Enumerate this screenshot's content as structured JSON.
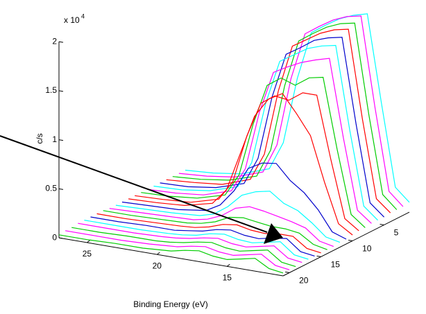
{
  "chart_data": {
    "type": "waterfall3d",
    "x_label": "Binding Energy (eV)",
    "z_label": "c/s",
    "z_multiplier": "x 10",
    "z_exponent": "4",
    "x": [
      27,
      25,
      23,
      21,
      20,
      19,
      18,
      17,
      16,
      15,
      14,
      13,
      12,
      11
    ],
    "xlim": [
      27,
      11
    ],
    "xticks": [
      25,
      20,
      15
    ],
    "ylim": [
      1,
      21
    ],
    "yticks": [
      5,
      10,
      15,
      20
    ],
    "zlim": [
      0,
      2
    ],
    "zticks": [
      0,
      0.5,
      1,
      1.5,
      2
    ],
    "series": [
      {
        "y": 1,
        "color": "#00ffff",
        "values": [
          0.04,
          0.06,
          0.1,
          0.2,
          0.49,
          1.17,
          1.66,
          1.76,
          1.85,
          1.91,
          1.95,
          1.07,
          0.23,
          0.1
        ]
      },
      {
        "y": 2,
        "color": "#ff00ff",
        "values": [
          0.04,
          0.06,
          0.1,
          0.2,
          0.5,
          1.2,
          1.68,
          1.78,
          1.87,
          1.93,
          1.96,
          1.05,
          0.22,
          0.09
        ]
      },
      {
        "y": 3,
        "color": "#00cc00",
        "values": [
          0.04,
          0.06,
          0.1,
          0.19,
          0.48,
          1.16,
          1.64,
          1.74,
          1.83,
          1.89,
          1.92,
          1.02,
          0.22,
          0.09
        ]
      },
      {
        "y": 4,
        "color": "#ff0000",
        "values": [
          0.04,
          0.06,
          0.09,
          0.19,
          0.47,
          1.14,
          1.62,
          1.71,
          1.8,
          1.86,
          1.89,
          1.0,
          0.21,
          0.09
        ]
      },
      {
        "y": 5,
        "color": "#0000cc",
        "values": [
          0.04,
          0.05,
          0.09,
          0.18,
          0.46,
          1.11,
          1.57,
          1.66,
          1.76,
          1.81,
          1.84,
          0.98,
          0.2,
          0.08
        ]
      },
      {
        "y": 6,
        "color": "#00ffff",
        "values": [
          0.04,
          0.05,
          0.09,
          0.18,
          0.45,
          1.08,
          1.53,
          1.62,
          1.71,
          1.76,
          1.79,
          0.95,
          0.2,
          0.08
        ]
      },
      {
        "y": 7,
        "color": "#ff00ff",
        "values": [
          0.04,
          0.05,
          0.08,
          0.17,
          0.42,
          1.02,
          1.45,
          1.53,
          1.6,
          1.65,
          1.69,
          0.9,
          0.19,
          0.08
        ]
      },
      {
        "y": 8,
        "color": "#00cc00",
        "values": [
          0.04,
          0.05,
          0.08,
          0.16,
          0.39,
          0.93,
          1.35,
          1.45,
          1.4,
          1.5,
          1.53,
          0.82,
          0.18,
          0.07
        ]
      },
      {
        "y": 9,
        "color": "#ff0000",
        "values": [
          0.04,
          0.05,
          0.07,
          0.15,
          0.35,
          0.84,
          1.2,
          1.3,
          1.28,
          1.38,
          1.38,
          0.75,
          0.17,
          0.07
        ]
      },
      {
        "y": 10,
        "color": "#ff0000",
        "values": [
          0.04,
          0.05,
          0.07,
          0.14,
          0.3,
          0.7,
          1.1,
          1.3,
          1.38,
          1.2,
          1.0,
          0.55,
          0.15,
          0.06
        ]
      },
      {
        "y": 11,
        "color": "#0000cc",
        "values": [
          0.04,
          0.05,
          0.06,
          0.1,
          0.18,
          0.35,
          0.6,
          0.68,
          0.7,
          0.55,
          0.45,
          0.3,
          0.1,
          0.05
        ]
      },
      {
        "y": 12,
        "color": "#00ffff",
        "values": [
          0.04,
          0.05,
          0.06,
          0.08,
          0.12,
          0.22,
          0.36,
          0.42,
          0.45,
          0.35,
          0.3,
          0.2,
          0.08,
          0.05
        ]
      },
      {
        "y": 13,
        "color": "#ff00ff",
        "values": [
          0.04,
          0.05,
          0.06,
          0.07,
          0.1,
          0.16,
          0.26,
          0.3,
          0.28,
          0.25,
          0.22,
          0.18,
          0.07,
          0.04
        ]
      },
      {
        "y": 14,
        "color": "#00cc00",
        "values": [
          0.05,
          0.05,
          0.06,
          0.07,
          0.09,
          0.13,
          0.2,
          0.22,
          0.2,
          0.18,
          0.18,
          0.16,
          0.07,
          0.04
        ]
      },
      {
        "y": 15,
        "color": "#ff0000",
        "values": [
          0.05,
          0.05,
          0.06,
          0.07,
          0.08,
          0.11,
          0.16,
          0.18,
          0.15,
          0.14,
          0.16,
          0.16,
          0.06,
          0.04
        ]
      },
      {
        "y": 16,
        "color": "#0000cc",
        "values": [
          0.05,
          0.05,
          0.06,
          0.06,
          0.08,
          0.1,
          0.14,
          0.16,
          0.13,
          0.12,
          0.15,
          0.17,
          0.06,
          0.04
        ]
      },
      {
        "y": 17,
        "color": "#00ffff",
        "values": [
          0.05,
          0.05,
          0.05,
          0.06,
          0.07,
          0.09,
          0.13,
          0.15,
          0.12,
          0.11,
          0.14,
          0.17,
          0.06,
          0.04
        ]
      },
      {
        "y": 18,
        "color": "#ff00ff",
        "values": [
          0.05,
          0.05,
          0.05,
          0.06,
          0.07,
          0.09,
          0.12,
          0.14,
          0.11,
          0.1,
          0.13,
          0.16,
          0.06,
          0.04
        ]
      },
      {
        "y": 19,
        "color": "#00cc00",
        "values": [
          0.04,
          0.04,
          0.05,
          0.05,
          0.06,
          0.08,
          0.11,
          0.13,
          0.1,
          0.09,
          0.12,
          0.15,
          0.05,
          0.03
        ]
      },
      {
        "y": 20,
        "color": "#ff00ff",
        "values": [
          0.04,
          0.04,
          0.04,
          0.05,
          0.06,
          0.07,
          0.1,
          0.12,
          0.09,
          0.08,
          0.11,
          0.14,
          0.05,
          0.03
        ]
      },
      {
        "y": 21,
        "color": "#00cc00",
        "values": [
          0.03,
          0.03,
          0.04,
          0.04,
          0.05,
          0.06,
          0.09,
          0.11,
          0.08,
          0.07,
          0.1,
          0.13,
          0.05,
          0.03
        ]
      }
    ]
  }
}
